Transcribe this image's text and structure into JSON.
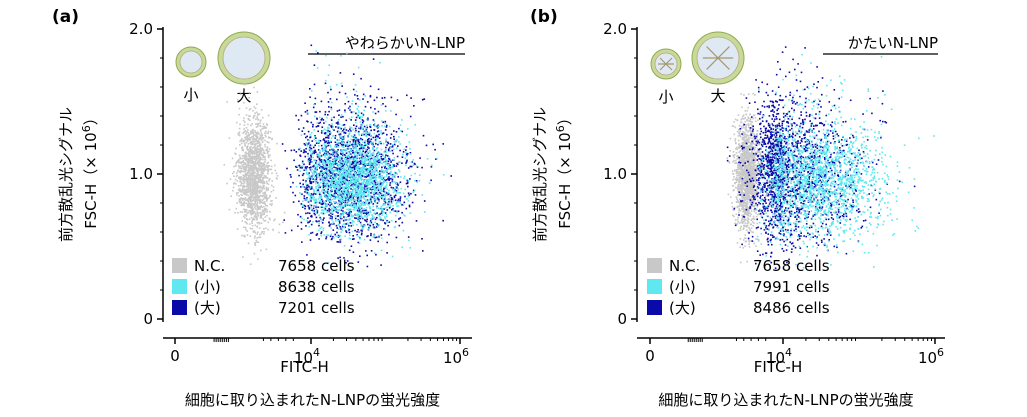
{
  "colors": {
    "nc": "#c8c8c8",
    "small": "#5fe8f0",
    "large": "#0a0aa8",
    "shell_outer": "#c9d99a",
    "shell_inner": "#dfe9f4"
  },
  "chart_data": [
    {
      "type": "scatter",
      "panel_label": "(a)",
      "title": "やわらかいN-LNP",
      "ylabel_main": "前方散乱光シグナル",
      "ylabel_sub": "FSC-H（× 10",
      "ylabel_sup": "6",
      "ylabel_close": "）",
      "xlabel_sub": "FITC-H",
      "xlabel_main": "細胞に取り込まれたN-LNPの蛍光強度",
      "xscale": "log-like (0, 10^4, 10^6)",
      "x_ticks": [
        {
          "value": 0,
          "label": "0"
        },
        {
          "value": 4,
          "base": "10",
          "sup": "4"
        },
        {
          "value": 6,
          "base": "10",
          "sup": "6"
        }
      ],
      "y_ticks": [
        {
          "value": 0,
          "label": "0"
        },
        {
          "value": 1.0,
          "label": "1.0"
        },
        {
          "value": 2.0,
          "label": "2.0"
        }
      ],
      "ylim": [
        0,
        2.0
      ],
      "particle_icons": {
        "small_label": "小",
        "large_label": "大",
        "style": "soft"
      },
      "series": [
        {
          "name": "N.C.",
          "cells": "7658 cells",
          "color_key": "nc",
          "center_x": 2.3,
          "center_y": 1.0,
          "spread_x": 0.25,
          "spread_y": 0.19
        },
        {
          "name": "(小)",
          "cells": "8638 cells",
          "color_key": "small",
          "center_x": 4.55,
          "center_y": 0.95,
          "spread_x": 0.33,
          "spread_y": 0.17
        },
        {
          "name": "(大)",
          "cells": "7201 cells",
          "color_key": "large",
          "center_x": 4.5,
          "center_y": 0.98,
          "spread_x": 0.4,
          "spread_y": 0.22
        }
      ]
    },
    {
      "type": "scatter",
      "panel_label": "(b)",
      "title": "かたいN-LNP",
      "ylabel_main": "前方散乱光シグナル",
      "ylabel_sub": "FSC-H（× 10",
      "ylabel_sup": "6",
      "ylabel_close": "）",
      "xlabel_sub": "FITC-H",
      "xlabel_main": "細胞に取り込まれたN-LNPの蛍光強度",
      "xscale": "log-like (0, 10^4, 10^6)",
      "x_ticks": [
        {
          "value": 0,
          "label": "0"
        },
        {
          "value": 4,
          "base": "10",
          "sup": "4"
        },
        {
          "value": 6,
          "base": "10",
          "sup": "6"
        }
      ],
      "y_ticks": [
        {
          "value": 0,
          "label": "0"
        },
        {
          "value": 1.0,
          "label": "1.0"
        },
        {
          "value": 2.0,
          "label": "2.0"
        }
      ],
      "ylim": [
        0,
        2.0
      ],
      "particle_icons": {
        "small_label": "小",
        "large_label": "大",
        "style": "hard"
      },
      "series": [
        {
          "name": "N.C.",
          "cells": "7658 cells",
          "color_key": "nc",
          "center_x": 2.9,
          "center_y": 1.0,
          "spread_x": 0.18,
          "spread_y": 0.19
        },
        {
          "name": "(小)",
          "cells": "7991 cells",
          "color_key": "small",
          "center_x": 4.45,
          "center_y": 0.95,
          "spread_x": 0.45,
          "spread_y": 0.2
        },
        {
          "name": "(大)",
          "cells": "8486 cells",
          "color_key": "large",
          "center_x": 4.0,
          "center_y": 1.0,
          "spread_x": 0.5,
          "spread_y": 0.25
        }
      ]
    }
  ]
}
